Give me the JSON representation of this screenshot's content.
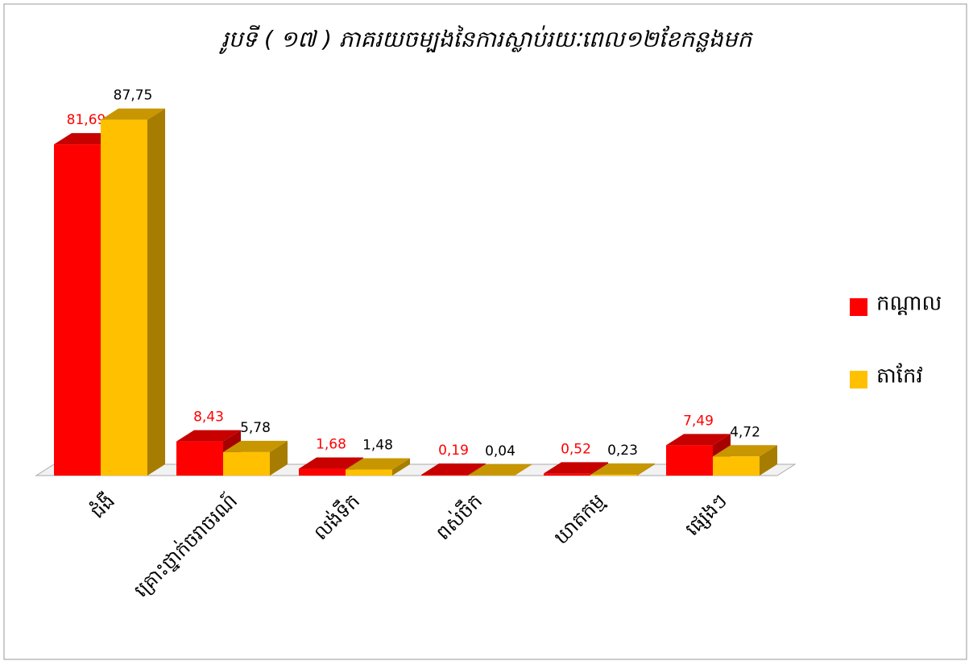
{
  "chart_data": {
    "type": "bar3d",
    "title": "រូបទី ( ១៧ ) ភាគរយចម្បងនៃការស្លាប់រយៈពេល១២ខែកន្លងមក",
    "categories": [
      "ជំងឺ",
      "គ្រោះថ្នាក់ចរាចរណ៍",
      "លង់ទឹក",
      "ពស់ចឹក",
      "ឃាតកម្ម",
      "ផ្សេងៗ"
    ],
    "series": [
      {
        "name": "កណ្តាល",
        "color": "#ff0000",
        "label_color": "#ff0000",
        "values": [
          81.69,
          8.43,
          1.68,
          0.19,
          0.52,
          7.49
        ],
        "value_labels": [
          "81,69",
          "8,43",
          "1,68",
          "0,19",
          "0,52",
          "7,49"
        ]
      },
      {
        "name": "តាកែវ",
        "color": "#ffc000",
        "label_color": "#000000",
        "values": [
          87.75,
          5.78,
          1.48,
          0.04,
          0.23,
          4.72
        ],
        "value_labels": [
          "87,75",
          "5,78",
          "1,48",
          "0,04",
          "0,23",
          "4,72"
        ]
      }
    ],
    "legend": "right"
  }
}
